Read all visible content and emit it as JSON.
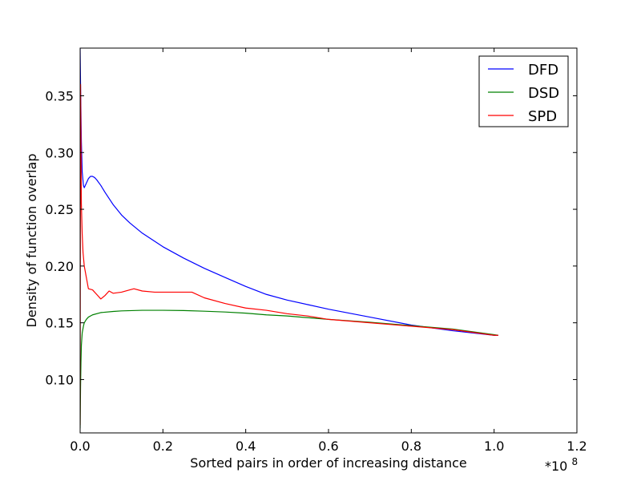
{
  "chart_data": {
    "type": "line",
    "title": "",
    "xlabel": "Sorted pairs in order of increasing distance",
    "ylabel": "Density of function overlap",
    "x_scale_label": "*10",
    "x_scale_exponent": "8",
    "xlim": [
      0.0,
      1.2
    ],
    "ylim": [
      0.053,
      0.392
    ],
    "xticks": [
      0.0,
      0.2,
      0.4,
      0.6,
      0.8,
      1.0,
      1.2
    ],
    "xtick_labels": [
      "0.0",
      "0.2",
      "0.4",
      "0.6",
      "0.8",
      "1.0",
      "1.2"
    ],
    "yticks": [
      0.1,
      0.15,
      0.2,
      0.25,
      0.3,
      0.35
    ],
    "ytick_labels": [
      "0.10",
      "0.15",
      "0.20",
      "0.25",
      "0.30",
      "0.35"
    ],
    "grid": false,
    "legend_position": "top-right",
    "series": [
      {
        "name": "DFD",
        "color": "#0000ff",
        "x": [
          0.0,
          0.001,
          0.003,
          0.005,
          0.008,
          0.01,
          0.015,
          0.02,
          0.025,
          0.03,
          0.035,
          0.04,
          0.05,
          0.06,
          0.08,
          0.1,
          0.12,
          0.15,
          0.2,
          0.25,
          0.3,
          0.35,
          0.4,
          0.45,
          0.5,
          0.55,
          0.6,
          0.7,
          0.8,
          0.9,
          1.0,
          1.01
        ],
        "y": [
          0.392,
          0.36,
          0.31,
          0.283,
          0.271,
          0.269,
          0.273,
          0.277,
          0.279,
          0.279,
          0.278,
          0.276,
          0.271,
          0.265,
          0.254,
          0.245,
          0.238,
          0.229,
          0.217,
          0.207,
          0.198,
          0.19,
          0.182,
          0.175,
          0.17,
          0.166,
          0.162,
          0.155,
          0.148,
          0.143,
          0.139,
          0.139
        ]
      },
      {
        "name": "DSD",
        "color": "#008000",
        "x": [
          0.0,
          0.001,
          0.002,
          0.003,
          0.005,
          0.008,
          0.01,
          0.015,
          0.02,
          0.03,
          0.05,
          0.08,
          0.1,
          0.15,
          0.2,
          0.25,
          0.3,
          0.35,
          0.4,
          0.45,
          0.5,
          0.6,
          0.7,
          0.8,
          0.9,
          1.0,
          1.01
        ],
        "y": [
          0.057,
          0.093,
          0.115,
          0.13,
          0.141,
          0.147,
          0.15,
          0.153,
          0.155,
          0.157,
          0.159,
          0.16,
          0.1605,
          0.161,
          0.161,
          0.1608,
          0.1602,
          0.1595,
          0.1585,
          0.157,
          0.156,
          0.153,
          0.1505,
          0.1475,
          0.1445,
          0.1395,
          0.139
        ]
      },
      {
        "name": "SPD",
        "color": "#ff0000",
        "x": [
          0.0,
          0.001,
          0.002,
          0.003,
          0.005,
          0.007,
          0.01,
          0.015,
          0.02,
          0.03,
          0.04,
          0.05,
          0.06,
          0.07,
          0.08,
          0.1,
          0.12,
          0.13,
          0.15,
          0.18,
          0.2,
          0.25,
          0.27,
          0.3,
          0.35,
          0.4,
          0.45,
          0.5,
          0.55,
          0.6,
          0.7,
          0.8,
          0.9,
          1.0,
          1.01
        ],
        "y": [
          0.06,
          0.36,
          0.31,
          0.255,
          0.228,
          0.212,
          0.2,
          0.19,
          0.18,
          0.179,
          0.175,
          0.171,
          0.174,
          0.178,
          0.176,
          0.177,
          0.179,
          0.18,
          0.178,
          0.177,
          0.177,
          0.177,
          0.177,
          0.172,
          0.167,
          0.163,
          0.161,
          0.158,
          0.156,
          0.153,
          0.15,
          0.147,
          0.144,
          0.139,
          0.139
        ]
      }
    ]
  }
}
